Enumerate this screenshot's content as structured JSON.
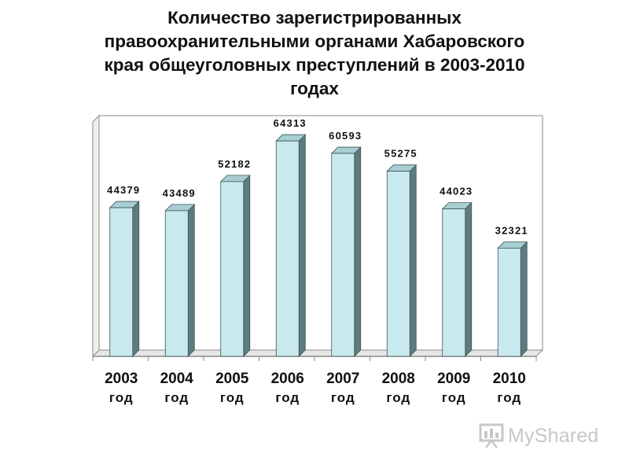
{
  "title_lines": [
    "Количество зарегистрированных",
    "правоохранительными органами Хабаровского",
    "края общеуголовных преступлений в 2003-2010",
    "годах"
  ],
  "watermark": {
    "text": "MyShared",
    "icon": "presentation-board-icon"
  },
  "colors": {
    "bar_front": "#c8eaee",
    "bar_side": "#5e7b7e",
    "bar_top": "#a7cfd3",
    "wall": "#ffffff",
    "floor": "#e6e6e6",
    "axis": "#8a8a8a"
  },
  "chart_data": {
    "type": "bar",
    "three_d": true,
    "categories": [
      [
        "2003",
        "год"
      ],
      [
        "2004",
        "год"
      ],
      [
        "2005",
        "год"
      ],
      [
        "2006",
        "год"
      ],
      [
        "2007",
        "год"
      ],
      [
        "2008",
        "год"
      ],
      [
        "2009",
        "год"
      ],
      [
        "2010",
        "год"
      ]
    ],
    "values": [
      44379,
      43489,
      52182,
      64313,
      60593,
      55275,
      44023,
      32321
    ],
    "data_labels": [
      "44379",
      "43489",
      "52182",
      "64313",
      "60593",
      "55275",
      "44023",
      "32321"
    ],
    "ylim": [
      0,
      70000
    ],
    "grid": false,
    "legend": "none"
  }
}
